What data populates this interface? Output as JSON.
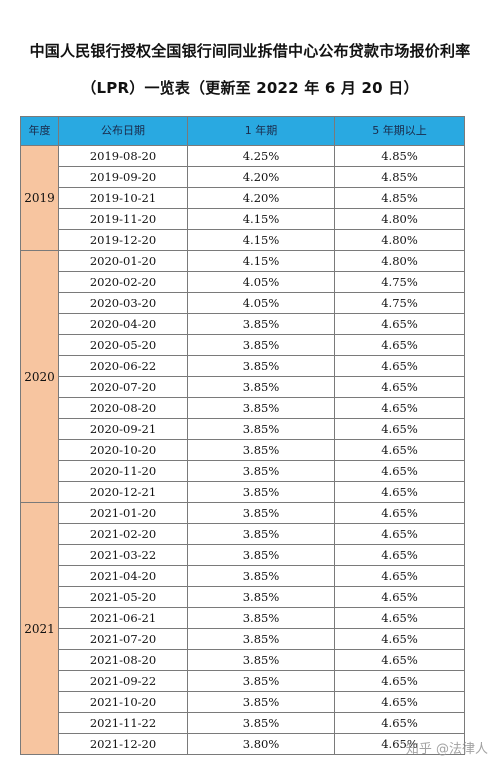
{
  "document": {
    "title_line1": "中国人民银行授权全国银行间同业拆借中心公布贷款市场报价利率",
    "title_line2": "（LPR）一览表（更新至 2022 年 6 月 20 日）"
  },
  "table": {
    "headers": [
      "年度",
      "公布日期",
      "1 年期",
      "5 年期以上"
    ],
    "groups": [
      {
        "year": "2019",
        "rows": [
          [
            "2019-08-20",
            "4.25%",
            "4.85%"
          ],
          [
            "2019-09-20",
            "4.20%",
            "4.85%"
          ],
          [
            "2019-10-21",
            "4.20%",
            "4.85%"
          ],
          [
            "2019-11-20",
            "4.15%",
            "4.80%"
          ],
          [
            "2019-12-20",
            "4.15%",
            "4.80%"
          ]
        ]
      },
      {
        "year": "2020",
        "rows": [
          [
            "2020-01-20",
            "4.15%",
            "4.80%"
          ],
          [
            "2020-02-20",
            "4.05%",
            "4.75%"
          ],
          [
            "2020-03-20",
            "4.05%",
            "4.75%"
          ],
          [
            "2020-04-20",
            "3.85%",
            "4.65%"
          ],
          [
            "2020-05-20",
            "3.85%",
            "4.65%"
          ],
          [
            "2020-06-22",
            "3.85%",
            "4.65%"
          ],
          [
            "2020-07-20",
            "3.85%",
            "4.65%"
          ],
          [
            "2020-08-20",
            "3.85%",
            "4.65%"
          ],
          [
            "2020-09-21",
            "3.85%",
            "4.65%"
          ],
          [
            "2020-10-20",
            "3.85%",
            "4.65%"
          ],
          [
            "2020-11-20",
            "3.85%",
            "4.65%"
          ],
          [
            "2020-12-21",
            "3.85%",
            "4.65%"
          ]
        ]
      },
      {
        "year": "2021",
        "rows": [
          [
            "2021-01-20",
            "3.85%",
            "4.65%"
          ],
          [
            "2021-02-20",
            "3.85%",
            "4.65%"
          ],
          [
            "2021-03-22",
            "3.85%",
            "4.65%"
          ],
          [
            "2021-04-20",
            "3.85%",
            "4.65%"
          ],
          [
            "2021-05-20",
            "3.85%",
            "4.65%"
          ],
          [
            "2021-06-21",
            "3.85%",
            "4.65%"
          ],
          [
            "2021-07-20",
            "3.85%",
            "4.65%"
          ],
          [
            "2021-08-20",
            "3.85%",
            "4.65%"
          ],
          [
            "2021-09-22",
            "3.85%",
            "4.65%"
          ],
          [
            "2021-10-20",
            "3.85%",
            "4.65%"
          ],
          [
            "2021-11-22",
            "3.85%",
            "4.65%"
          ],
          [
            "2021-12-20",
            "3.80%",
            "4.65%"
          ]
        ]
      }
    ]
  },
  "watermark": "知乎 @法律人",
  "colors": {
    "header_bg": "#29a9e1",
    "year_bg": "#f7c5a0",
    "border": "#7a7a7a"
  }
}
